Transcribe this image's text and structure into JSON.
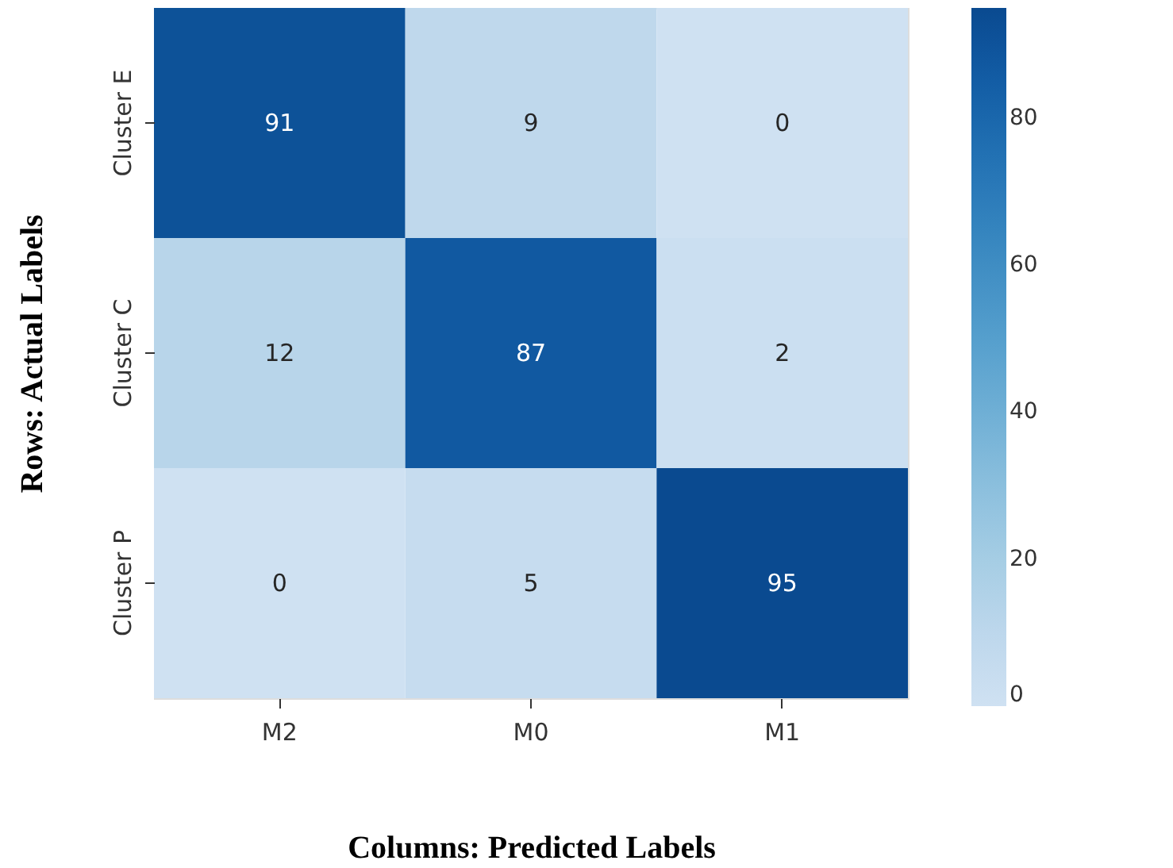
{
  "chart_data": {
    "type": "heatmap",
    "xlabel": "Columns: Predicted Labels",
    "ylabel": "Rows: Actual Labels",
    "categories": [
      "M2",
      "M0",
      "M1"
    ],
    "y_categories": [
      "Cluster E",
      "Cluster C",
      "Cluster P"
    ],
    "cells": [
      [
        91,
        9,
        0
      ],
      [
        12,
        87,
        2
      ],
      [
        0,
        5,
        95
      ]
    ],
    "data_labels": true,
    "clim": [
      0,
      95
    ],
    "cticks": [
      0,
      20,
      40,
      60,
      80
    ]
  }
}
